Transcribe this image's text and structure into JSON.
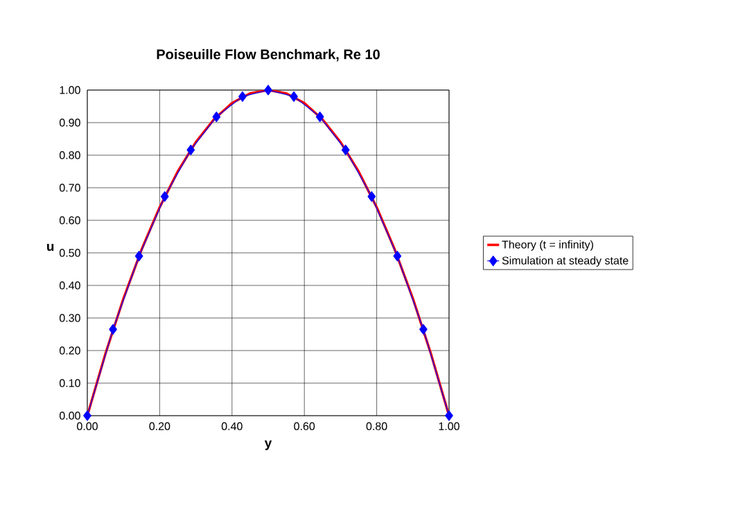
{
  "chart_data": {
    "type": "line",
    "title": "Poiseuille Flow Benchmark, Re 10",
    "xlabel": "y",
    "ylabel": "u",
    "xlim": [
      0,
      1
    ],
    "ylim": [
      0,
      1
    ],
    "xticks": [
      {
        "value": 0,
        "label": "0.00"
      },
      {
        "value": 0.2,
        "label": "0.20"
      },
      {
        "value": 0.4,
        "label": "0.40"
      },
      {
        "value": 0.6,
        "label": "0.60"
      },
      {
        "value": 0.8,
        "label": "0.80"
      },
      {
        "value": 1,
        "label": "1.00"
      }
    ],
    "yticks": [
      {
        "value": 0,
        "label": "0.00"
      },
      {
        "value": 0.1,
        "label": "0.10"
      },
      {
        "value": 0.2,
        "label": "0.20"
      },
      {
        "value": 0.3,
        "label": "0.30"
      },
      {
        "value": 0.4,
        "label": "0.40"
      },
      {
        "value": 0.5,
        "label": "0.50"
      },
      {
        "value": 0.6,
        "label": "0.60"
      },
      {
        "value": 0.7,
        "label": "0.70"
      },
      {
        "value": 0.8,
        "label": "0.80"
      },
      {
        "value": 0.9,
        "label": "0.90"
      },
      {
        "value": 1,
        "label": "1.00"
      }
    ],
    "grid": true,
    "legend": "right",
    "series": [
      {
        "name": "Theory (t = infinity)",
        "color": "#ff0000",
        "marker": "none",
        "x": [
          0,
          0.05,
          0.1,
          0.15,
          0.2,
          0.25,
          0.3,
          0.35,
          0.4,
          0.45,
          0.5,
          0.55,
          0.6,
          0.65,
          0.7,
          0.75,
          0.8,
          0.85,
          0.9,
          0.95,
          1
        ],
        "values": [
          0,
          0.19,
          0.36,
          0.51,
          0.64,
          0.75,
          0.84,
          0.91,
          0.96,
          0.99,
          1.0,
          0.99,
          0.96,
          0.91,
          0.84,
          0.75,
          0.64,
          0.51,
          0.36,
          0.19,
          0
        ]
      },
      {
        "name": "Simulation at steady state",
        "color": "#0000ff",
        "marker": "diamond",
        "x": [
          0,
          0.071,
          0.143,
          0.214,
          0.286,
          0.357,
          0.429,
          0.5,
          0.571,
          0.643,
          0.714,
          0.786,
          0.857,
          0.929,
          1
        ],
        "values": [
          0,
          0.265,
          0.49,
          0.673,
          0.816,
          0.918,
          0.98,
          1.0,
          0.98,
          0.918,
          0.816,
          0.673,
          0.49,
          0.265,
          0
        ]
      }
    ]
  }
}
